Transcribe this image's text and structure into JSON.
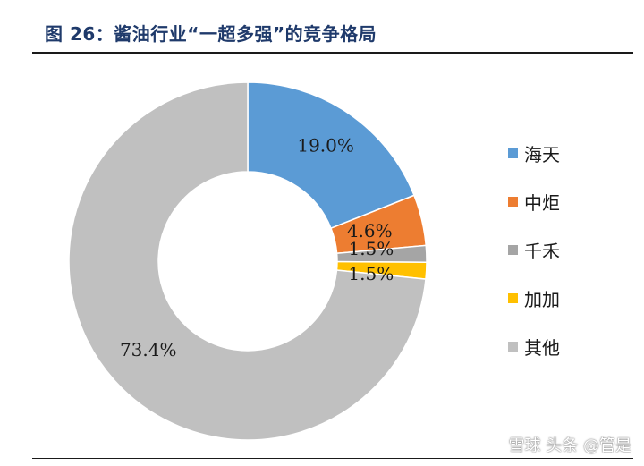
{
  "figure": {
    "title": "图 26：酱油行业“一超多强”的竞争格局"
  },
  "chart_data": {
    "type": "pie",
    "subtype": "donut",
    "title": "",
    "categories": [
      "海天",
      "中炬",
      "千禾",
      "加加",
      "其他"
    ],
    "values": [
      19.0,
      4.6,
      1.5,
      1.5,
      73.4
    ],
    "data_labels": [
      "19.0%",
      "4.6%",
      "1.5%",
      "1.5%",
      "73.4%"
    ],
    "colors": [
      "#5b9bd5",
      "#ed7d31",
      "#a5a5a5",
      "#ffc000",
      "#c0c0c0"
    ],
    "legend_position": "right",
    "start_angle": "12 o'clock",
    "direction": "clockwise",
    "unit": "%"
  },
  "watermark": {
    "text": "雪球 头条 @管是"
  }
}
